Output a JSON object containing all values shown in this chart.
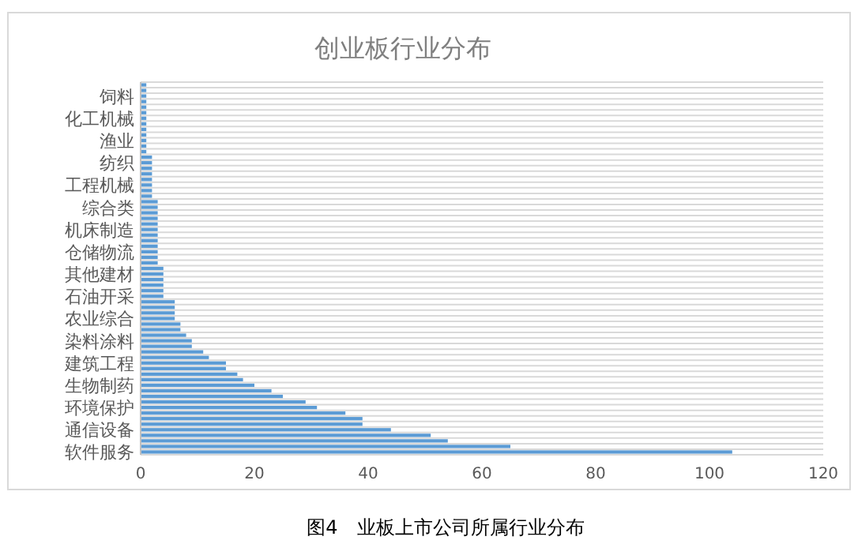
{
  "chart_data": {
    "type": "bar",
    "orientation": "horizontal",
    "title": "创业板行业分布",
    "categories": [
      null,
      null,
      "饲料",
      null,
      null,
      null,
      "化工机械",
      null,
      null,
      null,
      "渔业",
      null,
      null,
      null,
      "纺织",
      null,
      null,
      null,
      "工程机械",
      null,
      null,
      null,
      "综合类",
      null,
      null,
      null,
      "机床制造",
      null,
      null,
      null,
      "仓储物流",
      null,
      null,
      null,
      "其他建材",
      null,
      null,
      null,
      "石油开采",
      null,
      null,
      null,
      "农业综合",
      null,
      null,
      null,
      "染料涂料",
      null,
      null,
      null,
      "建筑工程",
      null,
      null,
      null,
      "生物制药",
      null,
      null,
      null,
      "环境保护",
      null,
      null,
      null,
      "通信设备",
      null,
      null,
      null,
      "软件服务"
    ],
    "values": [
      1,
      1,
      1,
      1,
      1,
      1,
      1,
      1,
      1,
      1,
      1,
      1,
      1,
      2,
      2,
      2,
      2,
      2,
      2,
      2,
      2,
      3,
      3,
      3,
      3,
      3,
      3,
      3,
      3,
      3,
      3,
      3,
      3,
      4,
      4,
      4,
      4,
      4,
      4,
      6,
      6,
      6,
      6,
      7,
      7,
      8,
      9,
      9,
      11,
      12,
      15,
      15,
      17,
      18,
      20,
      23,
      25,
      29,
      31,
      36,
      39,
      39,
      44,
      51,
      54,
      65,
      104
    ],
    "color": "#5b9bd5",
    "xlim": [
      0,
      120
    ],
    "xticks": [
      0,
      20,
      40,
      60,
      80,
      100,
      120
    ],
    "grid": "y",
    "annotations": [
      "图4　业板上市公司所属行业分布"
    ]
  }
}
